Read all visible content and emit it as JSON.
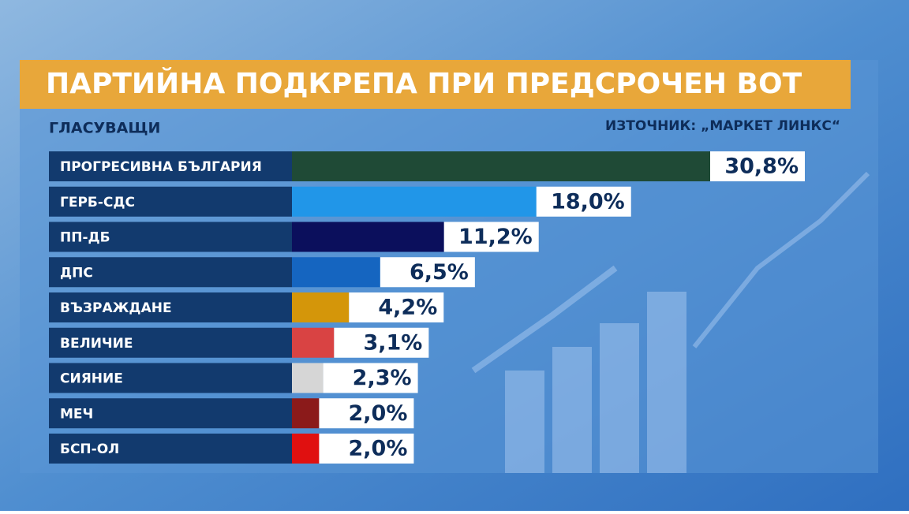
{
  "chart_data": {
    "type": "bar",
    "orientation": "horizontal",
    "title": "ПАРТИЙНА ПОДКРЕПА ПРИ ПРЕДСРОЧЕН ВОТ",
    "subtitle": "ГЛАСУВАЩИ",
    "source": "ИЗТОЧНИК: „МАРКЕТ ЛИНКС“",
    "categories": [
      "ПРОГРЕСИВНА БЪЛГАРИЯ",
      "ГЕРБ-СДС",
      "ПП-ДБ",
      "ДПС",
      "ВЪЗРАЖДАНЕ",
      "ВЕЛИЧИЕ",
      "СИЯНИЕ",
      "МЕЧ",
      "БСП-ОЛ"
    ],
    "values": [
      30.8,
      18.0,
      11.2,
      6.5,
      4.2,
      3.1,
      2.3,
      2.0,
      2.0
    ],
    "value_labels": [
      "30,8%",
      "18,0%",
      "11,2%",
      "6,5%",
      "4,2%",
      "3,1%",
      "2,3%",
      "2,0%",
      "2,0%"
    ],
    "colors": [
      "#1f4a36",
      "#2196e8",
      "#0b0f5c",
      "#1565c0",
      "#d4960a",
      "#d94343",
      "#d6d6d6",
      "#8b1a1a",
      "#e01010"
    ]
  }
}
